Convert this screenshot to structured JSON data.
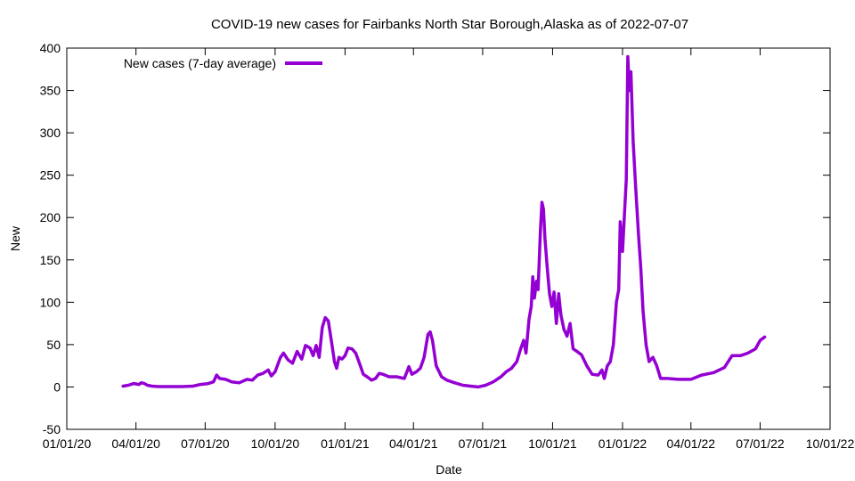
{
  "chart_data": {
    "type": "line",
    "title": "COVID-19 new cases for Fairbanks North Star Borough,Alaska as of 2022-07-07",
    "xlabel": "Date",
    "ylabel": "New",
    "xlim": [
      "2020-01-01",
      "2022-10-01"
    ],
    "ylim": [
      -50,
      400
    ],
    "x_ticks": [
      "01/01/20",
      "04/01/20",
      "07/01/20",
      "10/01/20",
      "01/01/21",
      "04/01/21",
      "07/01/21",
      "10/01/21",
      "01/01/22",
      "04/01/22",
      "07/01/22",
      "10/01/22"
    ],
    "y_ticks": [
      -50,
      0,
      50,
      100,
      150,
      200,
      250,
      300,
      350,
      400
    ],
    "grid": false,
    "legend_position": "top-left",
    "series": [
      {
        "name": "New cases (7-day average)",
        "color": "#9400d3",
        "points": [
          [
            "2020-03-15",
            1
          ],
          [
            "2020-03-22",
            2
          ],
          [
            "2020-03-29",
            4
          ],
          [
            "2020-04-05",
            3
          ],
          [
            "2020-04-08",
            5
          ],
          [
            "2020-04-12",
            4
          ],
          [
            "2020-04-16",
            2
          ],
          [
            "2020-04-22",
            1
          ],
          [
            "2020-05-01",
            0.5
          ],
          [
            "2020-05-15",
            0.5
          ],
          [
            "2020-06-01",
            0.5
          ],
          [
            "2020-06-15",
            1
          ],
          [
            "2020-06-25",
            3
          ],
          [
            "2020-07-05",
            4
          ],
          [
            "2020-07-12",
            6
          ],
          [
            "2020-07-16",
            14
          ],
          [
            "2020-07-20",
            10
          ],
          [
            "2020-07-28",
            9
          ],
          [
            "2020-08-05",
            6
          ],
          [
            "2020-08-15",
            5
          ],
          [
            "2020-08-25",
            9
          ],
          [
            "2020-09-01",
            8
          ],
          [
            "2020-09-08",
            14
          ],
          [
            "2020-09-15",
            16
          ],
          [
            "2020-09-22",
            20
          ],
          [
            "2020-09-26",
            13
          ],
          [
            "2020-10-01",
            18
          ],
          [
            "2020-10-08",
            35
          ],
          [
            "2020-10-12",
            40
          ],
          [
            "2020-10-18",
            32
          ],
          [
            "2020-10-24",
            28
          ],
          [
            "2020-10-30",
            42
          ],
          [
            "2020-11-05",
            33
          ],
          [
            "2020-11-10",
            49
          ],
          [
            "2020-11-16",
            46
          ],
          [
            "2020-11-20",
            37
          ],
          [
            "2020-11-24",
            49
          ],
          [
            "2020-11-28",
            35
          ],
          [
            "2020-12-02",
            70
          ],
          [
            "2020-12-06",
            82
          ],
          [
            "2020-12-10",
            78
          ],
          [
            "2020-12-14",
            55
          ],
          [
            "2020-12-18",
            30
          ],
          [
            "2020-12-21",
            22
          ],
          [
            "2020-12-24",
            35
          ],
          [
            "2020-12-28",
            33
          ],
          [
            "2021-01-01",
            37
          ],
          [
            "2021-01-05",
            46
          ],
          [
            "2021-01-10",
            45
          ],
          [
            "2021-01-15",
            40
          ],
          [
            "2021-01-20",
            28
          ],
          [
            "2021-01-25",
            15
          ],
          [
            "2021-01-30",
            12
          ],
          [
            "2021-02-05",
            8
          ],
          [
            "2021-02-10",
            10
          ],
          [
            "2021-02-15",
            16
          ],
          [
            "2021-02-20",
            15
          ],
          [
            "2021-02-28",
            12
          ],
          [
            "2021-03-10",
            12
          ],
          [
            "2021-03-20",
            10
          ],
          [
            "2021-03-26",
            24
          ],
          [
            "2021-03-30",
            15
          ],
          [
            "2021-04-05",
            18
          ],
          [
            "2021-04-10",
            22
          ],
          [
            "2021-04-15",
            35
          ],
          [
            "2021-04-20",
            62
          ],
          [
            "2021-04-23",
            65
          ],
          [
            "2021-04-26",
            55
          ],
          [
            "2021-05-01",
            25
          ],
          [
            "2021-05-08",
            12
          ],
          [
            "2021-05-15",
            8
          ],
          [
            "2021-05-25",
            5
          ],
          [
            "2021-06-05",
            2
          ],
          [
            "2021-06-15",
            1
          ],
          [
            "2021-06-25",
            0
          ],
          [
            "2021-07-05",
            2
          ],
          [
            "2021-07-15",
            6
          ],
          [
            "2021-07-25",
            12
          ],
          [
            "2021-08-01",
            18
          ],
          [
            "2021-08-08",
            22
          ],
          [
            "2021-08-15",
            30
          ],
          [
            "2021-08-20",
            45
          ],
          [
            "2021-08-24",
            55
          ],
          [
            "2021-08-27",
            40
          ],
          [
            "2021-08-31",
            80
          ],
          [
            "2021-09-03",
            95
          ],
          [
            "2021-09-05",
            130
          ],
          [
            "2021-09-07",
            105
          ],
          [
            "2021-09-10",
            125
          ],
          [
            "2021-09-12",
            115
          ],
          [
            "2021-09-15",
            185
          ],
          [
            "2021-09-17",
            218
          ],
          [
            "2021-09-19",
            210
          ],
          [
            "2021-09-21",
            175
          ],
          [
            "2021-09-24",
            140
          ],
          [
            "2021-09-27",
            110
          ],
          [
            "2021-09-30",
            95
          ],
          [
            "2021-10-03",
            112
          ],
          [
            "2021-10-06",
            75
          ],
          [
            "2021-10-09",
            110
          ],
          [
            "2021-10-12",
            85
          ],
          [
            "2021-10-16",
            68
          ],
          [
            "2021-10-20",
            60
          ],
          [
            "2021-10-24",
            75
          ],
          [
            "2021-10-28",
            45
          ],
          [
            "2021-11-02",
            42
          ],
          [
            "2021-11-08",
            38
          ],
          [
            "2021-11-15",
            25
          ],
          [
            "2021-11-22",
            15
          ],
          [
            "2021-11-30",
            14
          ],
          [
            "2021-12-05",
            20
          ],
          [
            "2021-12-08",
            10
          ],
          [
            "2021-12-12",
            25
          ],
          [
            "2021-12-16",
            30
          ],
          [
            "2021-12-20",
            50
          ],
          [
            "2021-12-24",
            100
          ],
          [
            "2021-12-27",
            115
          ],
          [
            "2021-12-29",
            195
          ],
          [
            "2022-01-01",
            160
          ],
          [
            "2022-01-03",
            195
          ],
          [
            "2022-01-06",
            245
          ],
          [
            "2022-01-08",
            390
          ],
          [
            "2022-01-10",
            350
          ],
          [
            "2022-01-12",
            372
          ],
          [
            "2022-01-15",
            290
          ],
          [
            "2022-01-18",
            240
          ],
          [
            "2022-01-22",
            180
          ],
          [
            "2022-01-25",
            140
          ],
          [
            "2022-01-28",
            90
          ],
          [
            "2022-02-01",
            50
          ],
          [
            "2022-02-05",
            30
          ],
          [
            "2022-02-10",
            35
          ],
          [
            "2022-02-15",
            25
          ],
          [
            "2022-02-20",
            10
          ],
          [
            "2022-03-01",
            10
          ],
          [
            "2022-03-15",
            9
          ],
          [
            "2022-04-01",
            9
          ],
          [
            "2022-04-15",
            14
          ],
          [
            "2022-05-01",
            17
          ],
          [
            "2022-05-15",
            23
          ],
          [
            "2022-05-25",
            37
          ],
          [
            "2022-06-05",
            37
          ],
          [
            "2022-06-15",
            40
          ],
          [
            "2022-06-25",
            45
          ],
          [
            "2022-07-01",
            55
          ],
          [
            "2022-07-07",
            59
          ]
        ]
      }
    ]
  }
}
